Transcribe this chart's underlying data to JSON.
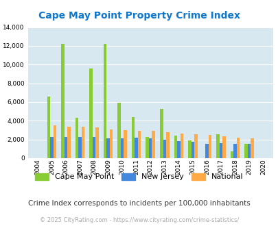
{
  "title": "Cape May Point Property Crime Index",
  "years": [
    2004,
    2005,
    2006,
    2007,
    2008,
    2009,
    2010,
    2011,
    2012,
    2013,
    2014,
    2015,
    2016,
    2017,
    2018,
    2019,
    2020
  ],
  "cape_may_point": [
    0,
    6600,
    12200,
    4350,
    9550,
    12200,
    5900,
    4400,
    2300,
    5250,
    2400,
    1900,
    0,
    2550,
    750,
    1550,
    0
  ],
  "new_jersey": [
    0,
    2300,
    2300,
    2300,
    2300,
    2100,
    2100,
    2200,
    2100,
    1950,
    1800,
    1750,
    1550,
    1600,
    1500,
    1500,
    0
  ],
  "national": [
    0,
    3500,
    3350,
    3350,
    3300,
    3100,
    3000,
    2950,
    2900,
    2800,
    2650,
    2550,
    2500,
    2350,
    2200,
    2100,
    0
  ],
  "cape_may_color": "#88cc33",
  "nj_color": "#4488dd",
  "national_color": "#ffaa44",
  "plot_bg_color": "#d8e8f0",
  "ylim": [
    0,
    14000
  ],
  "yticks": [
    0,
    2000,
    4000,
    6000,
    8000,
    10000,
    12000,
    14000
  ],
  "legend_labels": [
    "Cape May Point",
    "New Jersey",
    "National"
  ],
  "subtitle": "Crime Index corresponds to incidents per 100,000 inhabitants",
  "footer": "© 2025 CityRating.com - https://www.cityrating.com/crime-statistics/",
  "title_color": "#1177cc",
  "subtitle_color": "#333333",
  "footer_color": "#aaaaaa",
  "bar_width": 0.22
}
